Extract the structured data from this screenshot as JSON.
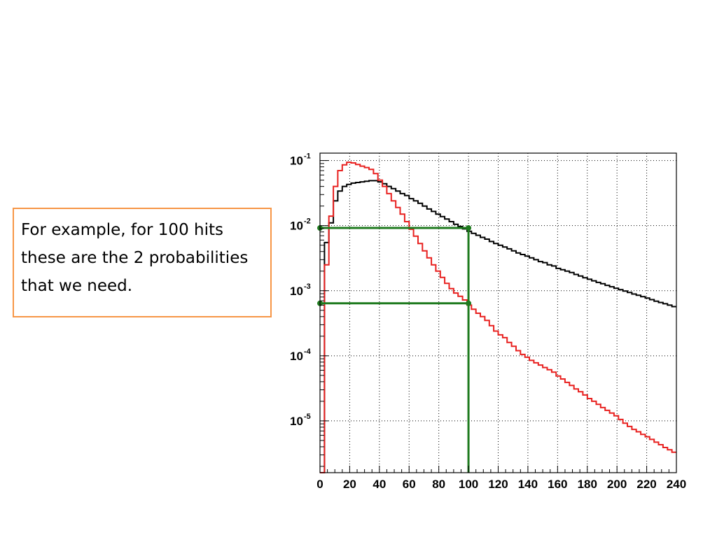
{
  "callout": {
    "text": "For example, for 100 hits these are the 2 probabilities that we need."
  },
  "colors": {
    "black_series": "#000000",
    "red_series": "#e8201f",
    "guide": "#1e7a1e",
    "callout_border": "#f79646",
    "grid": "#000000"
  },
  "chart_data": {
    "type": "line",
    "xscale": "linear",
    "yscale": "log",
    "xlim": [
      0,
      240
    ],
    "ylim": [
      1.6e-06,
      0.13
    ],
    "grid": true,
    "x_ticks": [
      0,
      20,
      40,
      60,
      80,
      100,
      120,
      140,
      160,
      180,
      200,
      220,
      240
    ],
    "y_ticks": [
      {
        "value": 0.1,
        "base": "10",
        "exp": "-1"
      },
      {
        "value": 0.01,
        "base": "10",
        "exp": "-2"
      },
      {
        "value": 0.001,
        "base": "10",
        "exp": "-3"
      },
      {
        "value": 0.0001,
        "base": "10",
        "exp": "-4"
      },
      {
        "value": 1e-05,
        "base": "10",
        "exp": "-5"
      }
    ],
    "bin_width": 3,
    "series": [
      {
        "color": "#000000",
        "x": [
          0,
          3,
          6,
          9,
          12,
          15,
          18,
          21,
          24,
          27,
          30,
          33,
          36,
          39,
          42,
          45,
          48,
          51,
          54,
          57,
          60,
          63,
          66,
          69,
          72,
          75,
          78,
          81,
          84,
          87,
          90,
          93,
          96,
          99,
          102,
          105,
          108,
          111,
          114,
          117,
          120,
          123,
          126,
          129,
          132,
          135,
          138,
          141,
          144,
          147,
          150,
          153,
          156,
          159,
          162,
          165,
          168,
          171,
          174,
          177,
          180,
          183,
          186,
          189,
          192,
          195,
          198,
          201,
          204,
          207,
          210,
          213,
          216,
          219,
          222,
          225,
          228,
          231,
          234,
          237
        ],
        "values": [
          1.6e-06,
          0.0055,
          0.011,
          0.024,
          0.034,
          0.04,
          0.043,
          0.045,
          0.046,
          0.047,
          0.048,
          0.049,
          0.049,
          0.047,
          0.044,
          0.04,
          0.037,
          0.034,
          0.031,
          0.029,
          0.026,
          0.024,
          0.022,
          0.02,
          0.018,
          0.0165,
          0.015,
          0.0138,
          0.0126,
          0.0115,
          0.0105,
          0.0097,
          0.0089,
          0.0082,
          0.0076,
          0.0071,
          0.0066,
          0.0062,
          0.0057,
          0.0053,
          0.005,
          0.0047,
          0.0044,
          0.0041,
          0.0038,
          0.0036,
          0.0034,
          0.0032,
          0.003,
          0.0028,
          0.0027,
          0.0025,
          0.0024,
          0.0022,
          0.0021,
          0.002,
          0.0019,
          0.00178,
          0.00168,
          0.00158,
          0.0015,
          0.00142,
          0.00134,
          0.00128,
          0.00121,
          0.00115,
          0.00109,
          0.00104,
          0.00099,
          0.00094,
          0.00089,
          0.00085,
          0.00081,
          0.00077,
          0.00073,
          0.00069,
          0.00066,
          0.00063,
          0.0006,
          0.00057
        ]
      },
      {
        "color": "#e8201f",
        "x": [
          0,
          3,
          6,
          9,
          12,
          15,
          18,
          21,
          24,
          27,
          30,
          33,
          36,
          39,
          42,
          45,
          48,
          51,
          54,
          57,
          60,
          63,
          66,
          69,
          72,
          75,
          78,
          81,
          84,
          87,
          90,
          93,
          96,
          99,
          102,
          105,
          108,
          111,
          114,
          117,
          120,
          123,
          126,
          129,
          132,
          135,
          138,
          141,
          144,
          147,
          150,
          153,
          156,
          159,
          162,
          165,
          168,
          171,
          174,
          177,
          180,
          183,
          186,
          189,
          192,
          195,
          198,
          201,
          204,
          207,
          210,
          213,
          216,
          219,
          222,
          225,
          228,
          231,
          234,
          237
        ],
        "values": [
          1.6e-06,
          0.0025,
          0.014,
          0.04,
          0.07,
          0.086,
          0.094,
          0.092,
          0.087,
          0.082,
          0.078,
          0.073,
          0.063,
          0.05,
          0.04,
          0.031,
          0.024,
          0.019,
          0.015,
          0.0115,
          0.0088,
          0.0069,
          0.0053,
          0.0041,
          0.0032,
          0.0025,
          0.002,
          0.0016,
          0.0013,
          0.00108,
          0.00092,
          0.00082,
          0.00072,
          0.0006,
          0.00052,
          0.00045,
          0.0004,
          0.00035,
          0.00029,
          0.00024,
          0.00021,
          0.00019,
          0.00016,
          0.00014,
          0.00012,
          0.000105,
          9.5e-05,
          8.5e-05,
          7.8e-05,
          7.2e-05,
          6.6e-05,
          6.1e-05,
          5.6e-05,
          4.9e-05,
          4.4e-05,
          3.9e-05,
          3.5e-05,
          3.1e-05,
          2.8e-05,
          2.5e-05,
          2.2e-05,
          2e-05,
          1.8e-05,
          1.6e-05,
          1.45e-05,
          1.32e-05,
          1.2e-05,
          1.05e-05,
          9.2e-06,
          8.2e-06,
          7.4e-06,
          6.8e-06,
          6.2e-06,
          5.7e-06,
          5.2e-06,
          4.7e-06,
          4.3e-06,
          3.9e-06,
          3.6e-06,
          3.3e-06
        ]
      }
    ],
    "guides": [
      {
        "x": 100,
        "y": 0.0092
      },
      {
        "x": 100,
        "y": 0.00064
      }
    ]
  }
}
